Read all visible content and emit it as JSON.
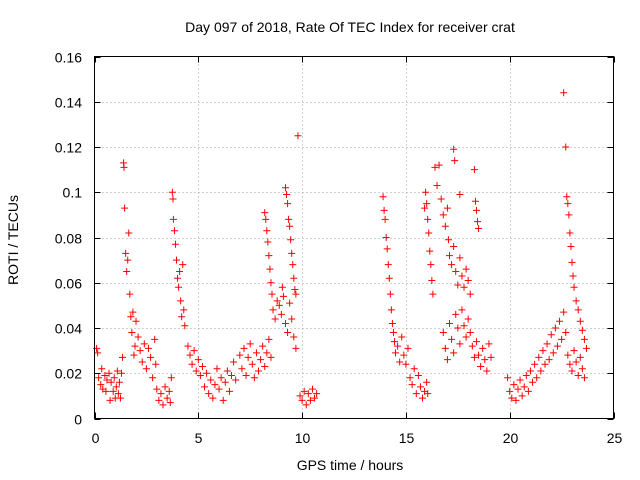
{
  "chart_data": {
    "type": "scatter",
    "title": "Day 097 of 2018, Rate Of TEC Index for receiver crat",
    "xlabel": "GPS time / hours",
    "ylabel": "ROTI / TECUs",
    "xlim": [
      0,
      25
    ],
    "ylim": [
      0,
      0.16
    ],
    "x_ticks": [
      0,
      5,
      10,
      15,
      20,
      25
    ],
    "x_tick_labels": [
      "0",
      "5",
      "10",
      "15",
      "20",
      "25"
    ],
    "y_ticks": [
      0,
      0.02,
      0.04,
      0.06,
      0.08,
      0.1,
      0.12,
      0.14,
      0.16
    ],
    "y_tick_labels": [
      "0",
      "0.02",
      "0.04",
      "0.06",
      "0.08",
      "0.1",
      "0.12",
      "0.14",
      "0.16"
    ],
    "grid": true,
    "marker": "+",
    "series": [
      {
        "name": "ROTI",
        "color": "#ff0000",
        "points": [
          [
            0.1,
            0.031
          ],
          [
            0.15,
            0.029
          ],
          [
            0.2,
            0.018
          ],
          [
            0.3,
            0.015
          ],
          [
            0.35,
            0.022
          ],
          [
            0.4,
            0.013
          ],
          [
            0.5,
            0.019
          ],
          [
            0.55,
            0.012
          ],
          [
            0.6,
            0.017
          ],
          [
            0.7,
            0.02
          ],
          [
            0.75,
            0.008
          ],
          [
            0.8,
            0.016
          ],
          [
            0.9,
            0.012
          ],
          [
            0.95,
            0.018
          ],
          [
            1.0,
            0.009
          ],
          [
            1.05,
            0.014
          ],
          [
            1.1,
            0.021
          ],
          [
            1.15,
            0.011
          ],
          [
            1.2,
            0.016
          ],
          [
            1.25,
            0.009
          ],
          [
            1.3,
            0.02
          ],
          [
            1.35,
            0.027
          ],
          [
            1.4,
            0.113
          ],
          [
            1.42,
            0.111
          ],
          [
            1.45,
            0.093
          ],
          [
            1.5,
            0.073
          ],
          [
            1.55,
            0.065
          ],
          [
            1.6,
            0.07
          ],
          [
            1.65,
            0.082
          ],
          [
            1.7,
            0.055
          ],
          [
            1.75,
            0.045
          ],
          [
            1.8,
            0.038
          ],
          [
            1.85,
            0.047
          ],
          [
            1.9,
            0.028
          ],
          [
            1.95,
            0.032
          ],
          [
            2.0,
            0.043
          ],
          [
            2.1,
            0.036
          ],
          [
            2.2,
            0.03
          ],
          [
            2.3,
            0.025
          ],
          [
            2.4,
            0.033
          ],
          [
            2.5,
            0.022
          ],
          [
            2.6,
            0.031
          ],
          [
            2.7,
            0.027
          ],
          [
            2.8,
            0.018
          ],
          [
            2.9,
            0.035
          ],
          [
            2.95,
            0.024
          ],
          [
            3.0,
            0.013
          ],
          [
            3.1,
            0.008
          ],
          [
            3.2,
            0.011
          ],
          [
            3.3,
            0.006
          ],
          [
            3.4,
            0.014
          ],
          [
            3.5,
            0.009
          ],
          [
            3.6,
            0.012
          ],
          [
            3.65,
            0.007
          ],
          [
            3.7,
            0.018
          ],
          [
            3.75,
            0.1
          ],
          [
            3.78,
            0.097
          ],
          [
            3.8,
            0.088
          ],
          [
            3.85,
            0.083
          ],
          [
            3.9,
            0.077
          ],
          [
            3.95,
            0.07
          ],
          [
            4.0,
            0.062
          ],
          [
            4.05,
            0.058
          ],
          [
            4.1,
            0.065
          ],
          [
            4.15,
            0.052
          ],
          [
            4.2,
            0.045
          ],
          [
            4.25,
            0.068
          ],
          [
            4.3,
            0.048
          ],
          [
            4.35,
            0.041
          ],
          [
            4.5,
            0.032
          ],
          [
            4.6,
            0.028
          ],
          [
            4.7,
            0.024
          ],
          [
            4.8,
            0.03
          ],
          [
            4.9,
            0.021
          ],
          [
            5.0,
            0.026
          ],
          [
            5.1,
            0.019
          ],
          [
            5.2,
            0.023
          ],
          [
            5.3,
            0.014
          ],
          [
            5.4,
            0.02
          ],
          [
            5.5,
            0.011
          ],
          [
            5.6,
            0.017
          ],
          [
            5.7,
            0.009
          ],
          [
            5.8,
            0.015
          ],
          [
            5.9,
            0.022
          ],
          [
            6.0,
            0.013
          ],
          [
            6.1,
            0.018
          ],
          [
            6.2,
            0.008
          ],
          [
            6.3,
            0.016
          ],
          [
            6.4,
            0.021
          ],
          [
            6.5,
            0.012
          ],
          [
            6.6,
            0.019
          ],
          [
            6.7,
            0.025
          ],
          [
            6.8,
            0.017
          ],
          [
            7.0,
            0.028
          ],
          [
            7.1,
            0.022
          ],
          [
            7.2,
            0.031
          ],
          [
            7.3,
            0.019
          ],
          [
            7.4,
            0.027
          ],
          [
            7.5,
            0.033
          ],
          [
            7.6,
            0.024
          ],
          [
            7.7,
            0.018
          ],
          [
            7.8,
            0.029
          ],
          [
            7.9,
            0.021
          ],
          [
            8.0,
            0.026
          ],
          [
            8.1,
            0.032
          ],
          [
            8.2,
            0.023
          ],
          [
            8.3,
            0.029
          ],
          [
            8.4,
            0.035
          ],
          [
            8.5,
            0.027
          ],
          [
            8.2,
            0.091
          ],
          [
            8.25,
            0.088
          ],
          [
            8.3,
            0.083
          ],
          [
            8.35,
            0.078
          ],
          [
            8.4,
            0.072
          ],
          [
            8.45,
            0.066
          ],
          [
            8.5,
            0.06
          ],
          [
            8.55,
            0.055
          ],
          [
            8.6,
            0.048
          ],
          [
            8.7,
            0.044
          ],
          [
            8.8,
            0.052
          ],
          [
            8.9,
            0.05
          ],
          [
            9.0,
            0.046
          ],
          [
            9.05,
            0.058
          ],
          [
            9.1,
            0.054
          ],
          [
            9.2,
            0.042
          ],
          [
            9.3,
            0.038
          ],
          [
            9.4,
            0.051
          ],
          [
            9.5,
            0.044
          ],
          [
            9.6,
            0.036
          ],
          [
            9.7,
            0.031
          ],
          [
            9.2,
            0.102
          ],
          [
            9.25,
            0.099
          ],
          [
            9.3,
            0.095
          ],
          [
            9.35,
            0.088
          ],
          [
            9.4,
            0.085
          ],
          [
            9.45,
            0.079
          ],
          [
            9.5,
            0.073
          ],
          [
            9.55,
            0.068
          ],
          [
            9.6,
            0.062
          ],
          [
            9.65,
            0.057
          ],
          [
            9.7,
            0.055
          ],
          [
            9.8,
            0.125
          ],
          [
            9.9,
            0.01
          ],
          [
            10.0,
            0.008
          ],
          [
            10.1,
            0.012
          ],
          [
            10.2,
            0.006
          ],
          [
            10.3,
            0.011
          ],
          [
            10.4,
            0.008
          ],
          [
            10.5,
            0.013
          ],
          [
            10.6,
            0.009
          ],
          [
            10.7,
            0.011
          ],
          [
            13.9,
            0.098
          ],
          [
            13.95,
            0.092
          ],
          [
            14.0,
            0.088
          ],
          [
            14.05,
            0.08
          ],
          [
            14.1,
            0.075
          ],
          [
            14.15,
            0.068
          ],
          [
            14.2,
            0.062
          ],
          [
            14.25,
            0.055
          ],
          [
            14.3,
            0.048
          ],
          [
            14.35,
            0.042
          ],
          [
            14.4,
            0.038
          ],
          [
            14.45,
            0.034
          ],
          [
            14.5,
            0.029
          ],
          [
            14.6,
            0.032
          ],
          [
            14.7,
            0.025
          ],
          [
            14.8,
            0.036
          ],
          [
            14.9,
            0.028
          ],
          [
            15.0,
            0.024
          ],
          [
            15.1,
            0.031
          ],
          [
            15.2,
            0.018
          ],
          [
            15.3,
            0.015
          ],
          [
            15.4,
            0.022
          ],
          [
            15.5,
            0.011
          ],
          [
            15.6,
            0.019
          ],
          [
            15.7,
            0.014
          ],
          [
            15.8,
            0.009
          ],
          [
            15.9,
            0.012
          ],
          [
            16.0,
            0.016
          ],
          [
            16.05,
            0.011
          ],
          [
            15.9,
            0.093
          ],
          [
            15.95,
            0.1
          ],
          [
            16.0,
            0.095
          ],
          [
            16.05,
            0.088
          ],
          [
            16.1,
            0.082
          ],
          [
            16.15,
            0.074
          ],
          [
            16.2,
            0.068
          ],
          [
            16.25,
            0.061
          ],
          [
            16.3,
            0.055
          ],
          [
            16.4,
            0.111
          ],
          [
            16.5,
            0.103
          ],
          [
            16.6,
            0.112
          ],
          [
            16.7,
            0.097
          ],
          [
            16.8,
            0.09
          ],
          [
            16.9,
            0.085
          ],
          [
            17.0,
            0.093
          ],
          [
            17.05,
            0.079
          ],
          [
            17.1,
            0.072
          ],
          [
            17.2,
            0.068
          ],
          [
            17.3,
            0.076
          ],
          [
            17.4,
            0.065
          ],
          [
            17.5,
            0.059
          ],
          [
            17.6,
            0.071
          ],
          [
            17.7,
            0.063
          ],
          [
            17.8,
            0.058
          ],
          [
            17.9,
            0.066
          ],
          [
            18.0,
            0.061
          ],
          [
            18.1,
            0.055
          ],
          [
            17.3,
            0.119
          ],
          [
            17.35,
            0.114
          ],
          [
            17.6,
            0.099
          ],
          [
            18.3,
            0.11
          ],
          [
            18.35,
            0.096
          ],
          [
            18.4,
            0.092
          ],
          [
            18.45,
            0.087
          ],
          [
            18.5,
            0.084
          ],
          [
            16.8,
            0.038
          ],
          [
            16.9,
            0.031
          ],
          [
            17.0,
            0.026
          ],
          [
            17.1,
            0.042
          ],
          [
            17.2,
            0.035
          ],
          [
            17.3,
            0.029
          ],
          [
            17.4,
            0.046
          ],
          [
            17.5,
            0.04
          ],
          [
            17.6,
            0.033
          ],
          [
            17.7,
            0.048
          ],
          [
            17.8,
            0.041
          ],
          [
            17.9,
            0.036
          ],
          [
            18.0,
            0.044
          ],
          [
            18.1,
            0.038
          ],
          [
            18.2,
            0.032
          ],
          [
            18.3,
            0.027
          ],
          [
            18.4,
            0.034
          ],
          [
            18.5,
            0.028
          ],
          [
            18.6,
            0.023
          ],
          [
            18.7,
            0.031
          ],
          [
            18.8,
            0.026
          ],
          [
            18.9,
            0.021
          ],
          [
            19.0,
            0.033
          ],
          [
            19.1,
            0.027
          ],
          [
            19.9,
            0.018
          ],
          [
            20.0,
            0.012
          ],
          [
            20.1,
            0.009
          ],
          [
            20.2,
            0.015
          ],
          [
            20.3,
            0.008
          ],
          [
            20.4,
            0.013
          ],
          [
            20.5,
            0.017
          ],
          [
            20.6,
            0.01
          ],
          [
            20.7,
            0.014
          ],
          [
            20.8,
            0.019
          ],
          [
            20.9,
            0.012
          ],
          [
            21.0,
            0.021
          ],
          [
            21.1,
            0.016
          ],
          [
            21.2,
            0.024
          ],
          [
            21.3,
            0.018
          ],
          [
            21.4,
            0.027
          ],
          [
            21.5,
            0.021
          ],
          [
            21.6,
            0.03
          ],
          [
            21.7,
            0.024
          ],
          [
            21.8,
            0.033
          ],
          [
            21.9,
            0.026
          ],
          [
            22.0,
            0.037
          ],
          [
            22.1,
            0.029
          ],
          [
            22.2,
            0.04
          ],
          [
            22.3,
            0.032
          ],
          [
            22.4,
            0.043
          ],
          [
            22.5,
            0.035
          ],
          [
            22.6,
            0.047
          ],
          [
            22.7,
            0.038
          ],
          [
            22.6,
            0.144
          ],
          [
            22.7,
            0.12
          ],
          [
            22.75,
            0.098
          ],
          [
            22.8,
            0.095
          ],
          [
            22.85,
            0.09
          ],
          [
            22.9,
            0.082
          ],
          [
            22.95,
            0.076
          ],
          [
            23.0,
            0.069
          ],
          [
            23.05,
            0.063
          ],
          [
            23.1,
            0.058
          ],
          [
            23.2,
            0.052
          ],
          [
            23.3,
            0.048
          ],
          [
            23.4,
            0.043
          ],
          [
            23.5,
            0.039
          ],
          [
            23.6,
            0.035
          ],
          [
            23.7,
            0.031
          ],
          [
            22.8,
            0.028
          ],
          [
            22.9,
            0.024
          ],
          [
            23.0,
            0.021
          ],
          [
            23.1,
            0.03
          ],
          [
            23.2,
            0.025
          ],
          [
            23.3,
            0.019
          ],
          [
            23.4,
            0.027
          ],
          [
            23.5,
            0.022
          ],
          [
            23.6,
            0.018
          ]
        ]
      }
    ]
  }
}
